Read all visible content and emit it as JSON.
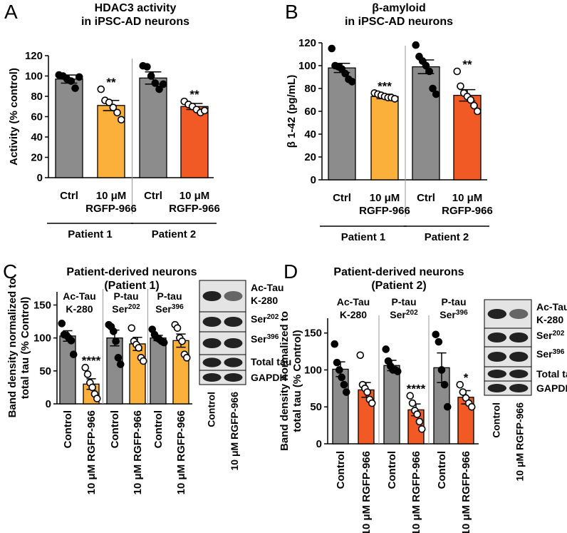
{
  "chart_data": [
    {
      "type": "bar",
      "panel": "A",
      "title": [
        "HDAC3 activity",
        "in iPSC-AD neurons"
      ],
      "ylabel": "Activity (% control)",
      "categories": [
        [
          "Ctrl"
        ],
        [
          "10 μM",
          "RGFP-966"
        ],
        [
          "Ctrl"
        ],
        [
          "10 μM",
          "RGFP-966"
        ]
      ],
      "values": [
        97,
        71,
        98,
        70
      ],
      "errors": [
        4,
        5,
        6,
        3
      ],
      "points": [
        [
          101,
          100,
          97,
          95,
          88,
          99
        ],
        [
          87,
          76,
          74,
          69,
          64,
          57
        ],
        [
          110,
          109,
          100,
          93,
          87,
          92
        ],
        [
          75,
          72,
          70,
          67,
          64,
          66
        ]
      ],
      "colors": [
        "#8c8c8c",
        "#fbb03b",
        "#8c8c8c",
        "#f15a24"
      ],
      "point_colors": [
        "#000000",
        "#ffffff",
        "#000000",
        "#ffffff"
      ],
      "significance": [
        null,
        "**",
        null,
        "**"
      ],
      "groups": [
        [
          "Patient 1"
        ],
        [
          "Patient 2"
        ]
      ],
      "ylim": [
        0,
        120
      ],
      "yticks": [
        0,
        20,
        40,
        60,
        80,
        100,
        120
      ]
    },
    {
      "type": "bar",
      "panel": "B",
      "title": [
        "β-amyloid",
        "in iPSC-AD neurons"
      ],
      "ylabel": "β 1-42 (pg/mL)",
      "categories": [
        [
          "Ctrl"
        ],
        [
          "10 μM",
          "RGFP-966"
        ],
        [
          "Ctrl"
        ],
        [
          "10 μM",
          "RGFP-966"
        ]
      ],
      "values": [
        98,
        73,
        99,
        74
      ],
      "errors": [
        4,
        2,
        6,
        5
      ],
      "points": [
        [
          115,
          100,
          99,
          97,
          93,
          88,
          86
        ],
        [
          76,
          75,
          74,
          73,
          72,
          72,
          71
        ],
        [
          118,
          108,
          104,
          100,
          95,
          80,
          75
        ],
        [
          95,
          82,
          76,
          73,
          70,
          65,
          60
        ]
      ],
      "colors": [
        "#8c8c8c",
        "#fbb03b",
        "#8c8c8c",
        "#f15a24"
      ],
      "point_colors": [
        "#000000",
        "#ffffff",
        "#000000",
        "#ffffff"
      ],
      "significance": [
        null,
        "***",
        null,
        "**"
      ],
      "groups": [
        [
          "Patient 1"
        ],
        [
          "Patient 2"
        ]
      ],
      "ylim": [
        0,
        120
      ],
      "yticks": [
        0,
        20,
        40,
        60,
        80,
        100,
        120
      ]
    },
    {
      "type": "bar",
      "panel": "C",
      "title": [
        "Patient-derived neurons",
        "(Patient 1)"
      ],
      "ylabel": [
        "Band density normalized to",
        "total tau (% Control)"
      ],
      "categories": [
        "Control",
        "10 μM RGFP-966",
        "Control",
        "10 μM RGFP-966",
        "Control",
        "10 μM RGFP-966"
      ],
      "values": [
        103,
        30,
        100,
        91,
        100,
        96
      ],
      "errors": [
        8,
        8,
        12,
        10,
        4,
        10
      ],
      "points": [
        [
          122,
          105,
          104,
          100,
          96,
          75
        ],
        [
          55,
          45,
          32,
          25,
          15,
          8
        ],
        [
          120,
          117,
          110,
          95,
          70,
          60
        ],
        [
          115,
          95,
          90,
          85,
          70,
          65
        ],
        [
          113,
          105,
          100,
          98,
          95,
          93
        ],
        [
          120,
          115,
          100,
          95,
          75,
          70
        ]
      ],
      "colors": [
        "#8c8c8c",
        "#fbb03b",
        "#8c8c8c",
        "#fbb03b",
        "#8c8c8c",
        "#fbb03b"
      ],
      "point_colors": [
        "#000000",
        "#ffffff",
        "#000000",
        "#ffffff",
        "#000000",
        "#ffffff"
      ],
      "significance": [
        null,
        "****",
        null,
        null,
        null,
        null
      ],
      "groups": [
        [
          "Ac-Tau",
          "K-280"
        ],
        [
          "P-tau",
          {
            "text": "Ser",
            "sup": "202"
          }
        ],
        [
          "P-tau",
          {
            "text": "Ser",
            "sup": "396"
          }
        ]
      ],
      "ylim": [
        0,
        170
      ],
      "yticks": [
        0,
        50,
        100,
        150
      ],
      "blot": {
        "bands": [
          [
            "Ac-Tau",
            "K-280"
          ],
          [
            {
              "text": "Ser",
              "sup": "202"
            }
          ],
          [
            {
              "text": "Ser",
              "sup": "396"
            }
          ],
          [
            "Total tau"
          ],
          [
            "GAPDH"
          ]
        ],
        "lanes": [
          "Control",
          "10 μM RGFP-966"
        ]
      }
    },
    {
      "type": "bar",
      "panel": "D",
      "title": [
        "Patient-derived neurons",
        "(Patient 2)"
      ],
      "ylabel": [
        "Band density normalized to",
        "total tau (% Control)"
      ],
      "categories": [
        "Control",
        "10 μM RGFP-966",
        "Control",
        "10 μM RGFP-966",
        "Control",
        "10 μM RGFP-966"
      ],
      "values": [
        101,
        73,
        106,
        46,
        103,
        63
      ],
      "errors": [
        10,
        10,
        7,
        8,
        20,
        9
      ],
      "points": [
        [
          135,
          110,
          100,
          90,
          80,
          70
        ],
        [
          120,
          80,
          75,
          70,
          60,
          55
        ],
        [
          128,
          112,
          105,
          100,
          100,
          98
        ],
        [
          65,
          55,
          45,
          40,
          30,
          20
        ],
        [
          148,
          138,
          100,
          80,
          50
        ],
        [
          80,
          70,
          62,
          55,
          50
        ]
      ],
      "colors": [
        "#8c8c8c",
        "#f15a24",
        "#8c8c8c",
        "#f15a24",
        "#8c8c8c",
        "#f15a24"
      ],
      "point_colors": [
        "#000000",
        "#ffffff",
        "#000000",
        "#ffffff",
        "#000000",
        "#ffffff"
      ],
      "significance": [
        null,
        null,
        null,
        "****",
        null,
        "*"
      ],
      "groups": [
        [
          "Ac-Tau",
          "K-280"
        ],
        [
          "P-tau",
          {
            "text": "Ser",
            "sup": "202"
          }
        ],
        [
          "P-tau",
          {
            "text": "Ser",
            "sup": "396"
          }
        ]
      ],
      "ylim": [
        0,
        170
      ],
      "yticks": [
        0,
        50,
        100,
        150
      ],
      "blot": {
        "bands": [
          [
            "Ac-Tau",
            "K-280"
          ],
          [
            {
              "text": "Ser",
              "sup": "202"
            }
          ],
          [
            {
              "text": "Ser",
              "sup": "396"
            }
          ],
          [
            "Total tau"
          ],
          [
            "GAPDH"
          ]
        ],
        "lanes": [
          "Control",
          "10 μM RGFP-966"
        ]
      }
    }
  ]
}
